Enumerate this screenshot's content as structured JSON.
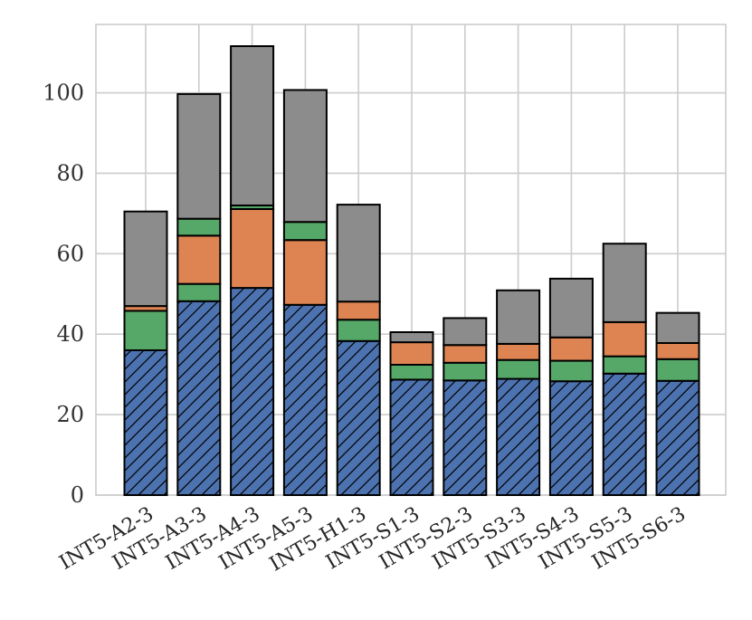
{
  "chart_data": {
    "type": "bar",
    "stacked": true,
    "title": "",
    "xlabel": "",
    "ylabel": "",
    "ylim": [
      0,
      117
    ],
    "yticks": [
      0,
      20,
      40,
      60,
      80,
      100
    ],
    "grid": true,
    "legend": "none",
    "categories": [
      "INT5-A2-3",
      "INT5-A3-3",
      "INT5-A4-3",
      "INT5-A5-3",
      "INT5-H1-3",
      "INT5-S1-3",
      "INT5-S2-3",
      "INT5-S3-3",
      "INT5-S4-3",
      "INT5-S5-3",
      "INT5-S6-3"
    ],
    "series": [
      {
        "name": "blue-hatched",
        "color": "#4c72b0",
        "hatch": true,
        "values": [
          36,
          48.2,
          51.5,
          47.3,
          38.3,
          28.7,
          28.5,
          28.9,
          28.3,
          30.2,
          28.4
        ]
      },
      {
        "name": "green",
        "color": "#55a868",
        "hatch": false,
        "values": [
          9.8,
          4.3,
          0,
          0,
          5.3,
          3.7,
          4.4,
          4.7,
          5.1,
          4.3,
          5.4
        ]
      },
      {
        "name": "orange",
        "color": "#dd8452",
        "hatch": false,
        "values": [
          1.2,
          12,
          19.6,
          16.1,
          4.5,
          5.6,
          4.4,
          4.0,
          5.8,
          8.5,
          4.0
        ]
      },
      {
        "name": "green-thin",
        "color": "#55a868",
        "hatch": false,
        "values": [
          0,
          4.2,
          0.9,
          4.5,
          0,
          0,
          0,
          0,
          0,
          0,
          0
        ]
      },
      {
        "name": "gray",
        "color": "#8c8c8c",
        "hatch": false,
        "values": [
          23.5,
          31.0,
          39.6,
          32.8,
          24.1,
          2.5,
          6.7,
          13.3,
          14.6,
          19.5,
          7.5
        ]
      }
    ]
  }
}
